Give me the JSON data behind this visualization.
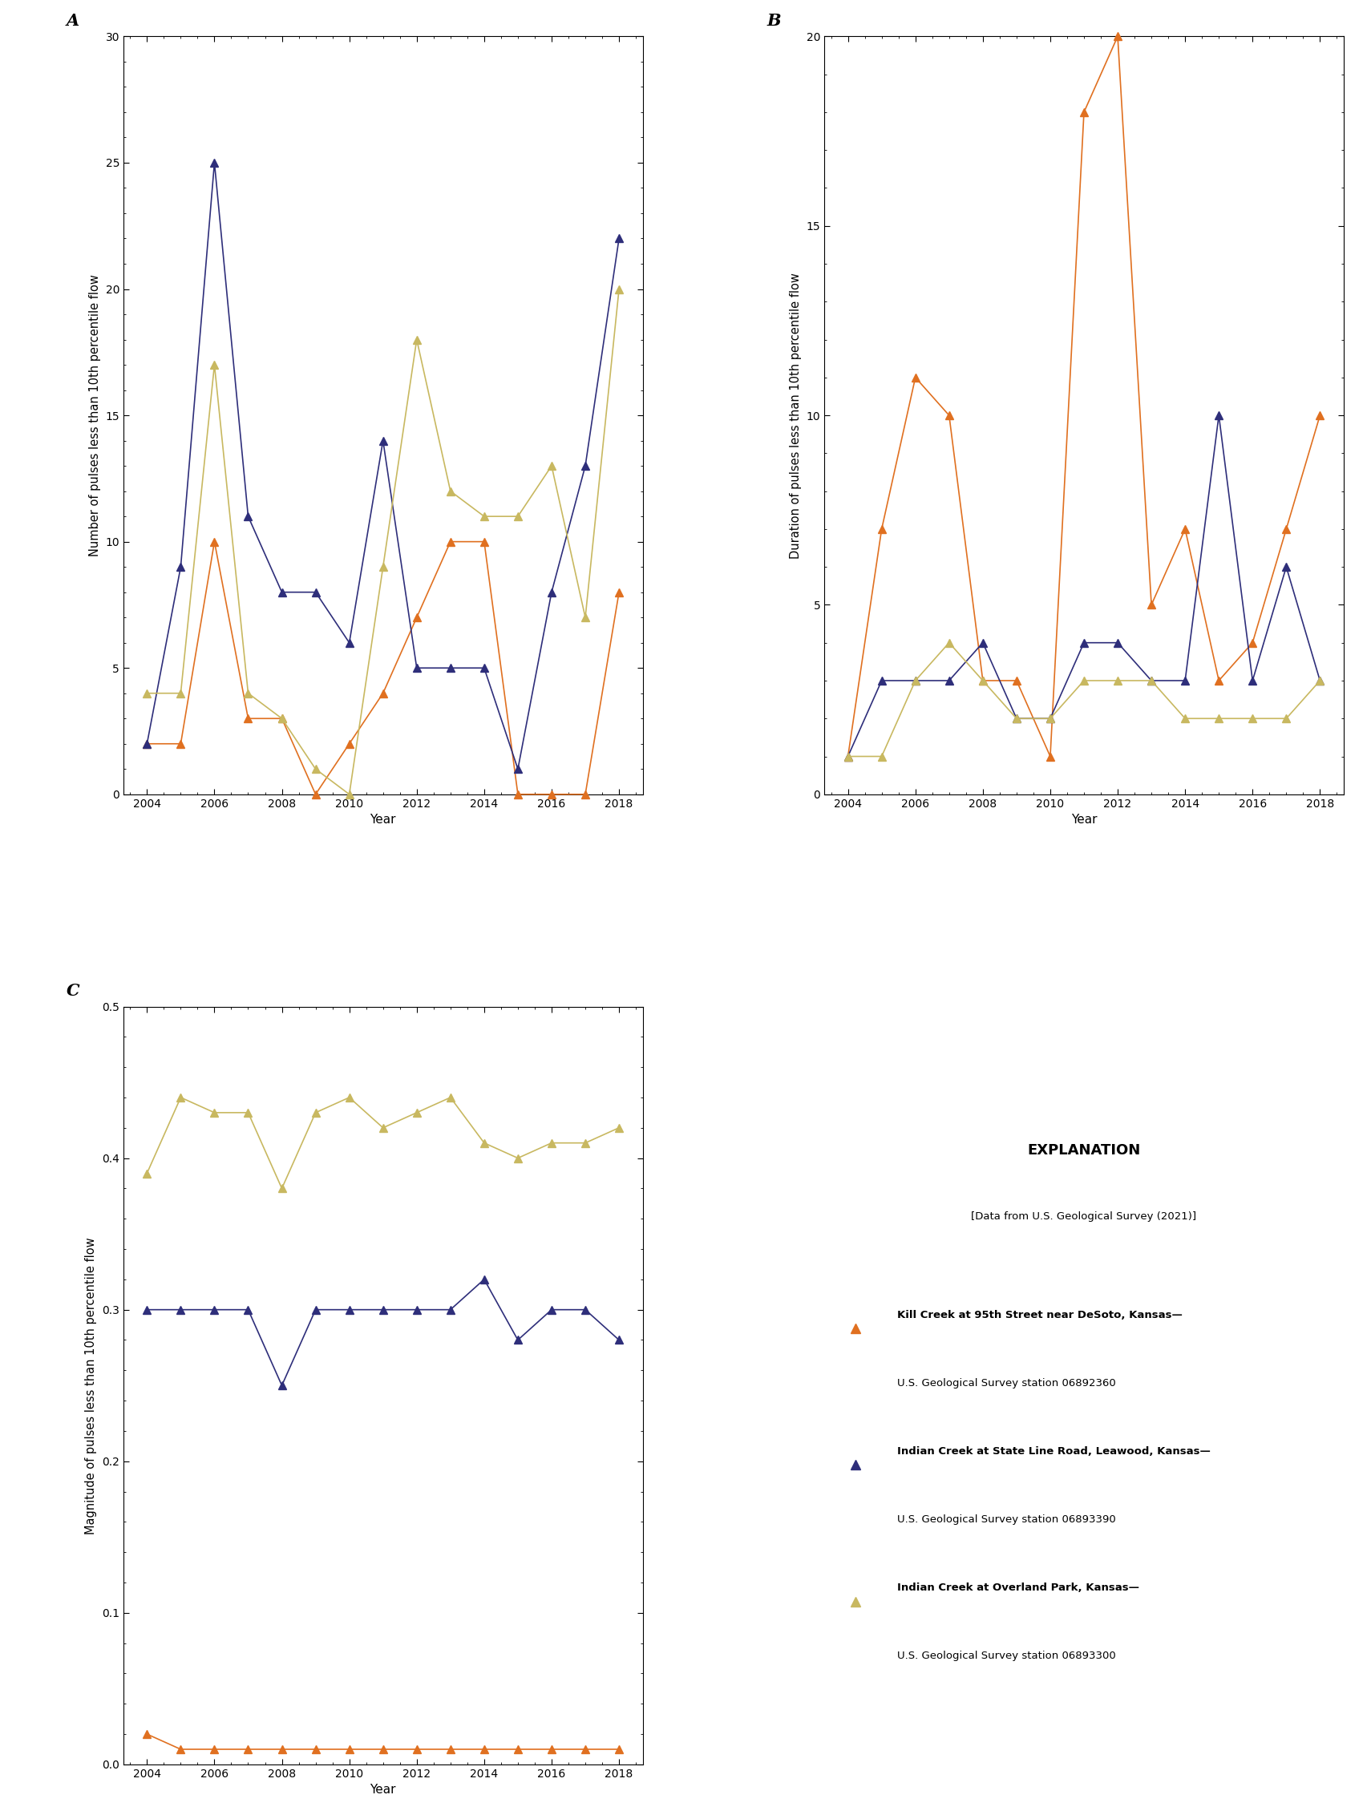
{
  "panel_A": {
    "title": "A",
    "xlabel": "Year",
    "ylabel": "Number of pulses less than 10th percentile flow",
    "ylim": [
      0,
      30
    ],
    "yticks": [
      0,
      5,
      10,
      15,
      20,
      25,
      30
    ],
    "kill_creek": {
      "years": [
        2004,
        2005,
        2006,
        2007,
        2008,
        2009,
        2010,
        2011,
        2012,
        2013,
        2014,
        2015,
        2016,
        2017,
        2018
      ],
      "values": [
        2,
        2,
        10,
        3,
        3,
        0,
        2,
        4,
        7,
        10,
        10,
        0,
        0,
        0,
        8
      ]
    },
    "indian_state": {
      "years": [
        2004,
        2005,
        2006,
        2007,
        2008,
        2009,
        2010,
        2011,
        2012,
        2013,
        2014,
        2015,
        2016,
        2017,
        2018
      ],
      "values": [
        2,
        9,
        25,
        11,
        8,
        8,
        6,
        14,
        5,
        5,
        5,
        1,
        8,
        13,
        22
      ]
    },
    "indian_overland": {
      "years": [
        2004,
        2005,
        2006,
        2007,
        2008,
        2009,
        2010,
        2011,
        2012,
        2013,
        2014,
        2015,
        2016,
        2017,
        2018
      ],
      "values": [
        4,
        4,
        17,
        4,
        3,
        1,
        0,
        9,
        18,
        12,
        11,
        11,
        13,
        7,
        20
      ]
    }
  },
  "panel_B": {
    "title": "B",
    "xlabel": "Year",
    "ylabel": "Duration of pulses less than 10th percentile flow",
    "ylim": [
      0,
      20
    ],
    "yticks": [
      0,
      5,
      10,
      15,
      20
    ],
    "kill_creek": {
      "years": [
        2004,
        2005,
        2006,
        2007,
        2008,
        2009,
        2010,
        2011,
        2012,
        2013,
        2014,
        2015,
        2016,
        2017,
        2018
      ],
      "values": [
        1,
        7,
        11,
        10,
        3,
        3,
        1,
        18,
        20,
        5,
        7,
        3,
        4,
        7,
        10
      ]
    },
    "indian_state": {
      "years": [
        2004,
        2005,
        2006,
        2007,
        2008,
        2009,
        2010,
        2011,
        2012,
        2013,
        2014,
        2015,
        2016,
        2017,
        2018
      ],
      "values": [
        1,
        3,
        3,
        3,
        4,
        2,
        2,
        4,
        4,
        3,
        3,
        10,
        3,
        6,
        3
      ]
    },
    "indian_overland": {
      "years": [
        2004,
        2005,
        2006,
        2007,
        2008,
        2009,
        2010,
        2011,
        2012,
        2013,
        2014,
        2015,
        2016,
        2017,
        2018
      ],
      "values": [
        1,
        1,
        3,
        4,
        3,
        2,
        2,
        3,
        3,
        3,
        2,
        2,
        2,
        2,
        3
      ]
    }
  },
  "panel_C": {
    "title": "C",
    "xlabel": "Year",
    "ylabel": "Magnitude of pulses less than 10th percentile flow",
    "ylim": [
      0,
      0.5
    ],
    "yticks": [
      0.0,
      0.1,
      0.2,
      0.3,
      0.4,
      0.5
    ],
    "kill_creek": {
      "years": [
        2004,
        2005,
        2006,
        2007,
        2008,
        2009,
        2010,
        2011,
        2012,
        2013,
        2014,
        2015,
        2016,
        2017,
        2018
      ],
      "values": [
        0.02,
        0.01,
        0.01,
        0.01,
        0.01,
        0.01,
        0.01,
        0.01,
        0.01,
        0.01,
        0.01,
        0.01,
        0.01,
        0.01,
        0.01
      ]
    },
    "indian_state": {
      "years": [
        2004,
        2005,
        2006,
        2007,
        2008,
        2009,
        2010,
        2011,
        2012,
        2013,
        2014,
        2015,
        2016,
        2017,
        2018
      ],
      "values": [
        0.3,
        0.3,
        0.3,
        0.3,
        0.25,
        0.3,
        0.3,
        0.3,
        0.3,
        0.3,
        0.32,
        0.28,
        0.3,
        0.3,
        0.28
      ]
    },
    "indian_overland": {
      "years": [
        2004,
        2005,
        2006,
        2007,
        2008,
        2009,
        2010,
        2011,
        2012,
        2013,
        2014,
        2015,
        2016,
        2017,
        2018
      ],
      "values": [
        0.39,
        0.44,
        0.43,
        0.43,
        0.38,
        0.43,
        0.44,
        0.42,
        0.43,
        0.44,
        0.41,
        0.4,
        0.41,
        0.41,
        0.42
      ]
    }
  },
  "colors": {
    "kill_creek": "#E07020",
    "indian_state": "#2E2E7A",
    "indian_overland": "#C8B860"
  },
  "legend": {
    "title": "EXPLANATION",
    "subtitle": "[Data from U.S. Geological Survey (2021)]",
    "kill_creek_label1": "Kill Creek at 95th Street near DeSoto, Kansas—",
    "kill_creek_label2": "U.S. Geological Survey station 06892360",
    "indian_state_label1": "Indian Creek at State Line Road, Leawood, Kansas—",
    "indian_state_label2": "U.S. Geological Survey station 06893390",
    "indian_overland_label1": "Indian Creek at Overland Park, Kansas—",
    "indian_overland_label2": "U.S. Geological Survey station 06893300"
  },
  "xticks": [
    2004,
    2006,
    2008,
    2010,
    2012,
    2014,
    2016,
    2018
  ]
}
